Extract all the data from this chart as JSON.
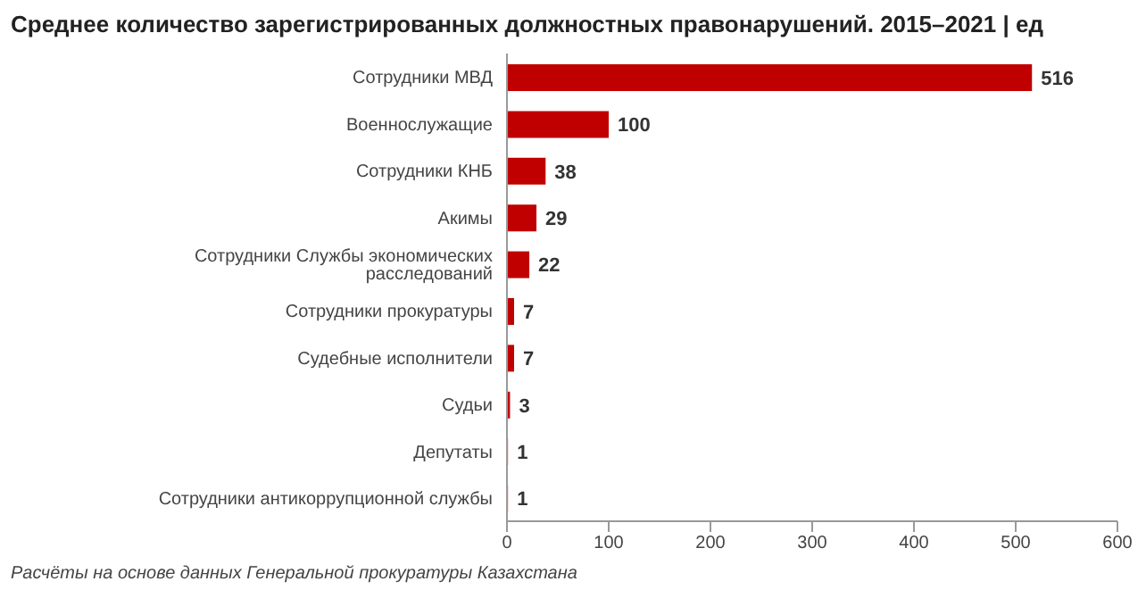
{
  "chart_data": {
    "type": "bar",
    "orientation": "horizontal",
    "title": "Среднее количество зарегистрированных должностных правонарушений. 2015–2021 | ед",
    "categories": [
      "Сотрудники МВД",
      "Военнослужащие",
      "Сотрудники КНБ",
      "Акимы",
      "Сотрудники Службы экономических расследований",
      "Сотрудники прокуратуры",
      "Судебные исполнители",
      "Судьи",
      "Депутаты",
      "Сотрудники антикоррупционной службы"
    ],
    "values": [
      516,
      100,
      38,
      29,
      22,
      7,
      7,
      3,
      1,
      1
    ],
    "color": "#c00000",
    "data_labels": true,
    "grid": false,
    "legend": false,
    "xlim": [
      0,
      600
    ],
    "xticks": [
      0,
      100,
      200,
      300,
      400,
      500,
      600
    ],
    "annotations": [
      "Расчёты на основе данных Генеральной прокуратуры Казахстана"
    ]
  }
}
